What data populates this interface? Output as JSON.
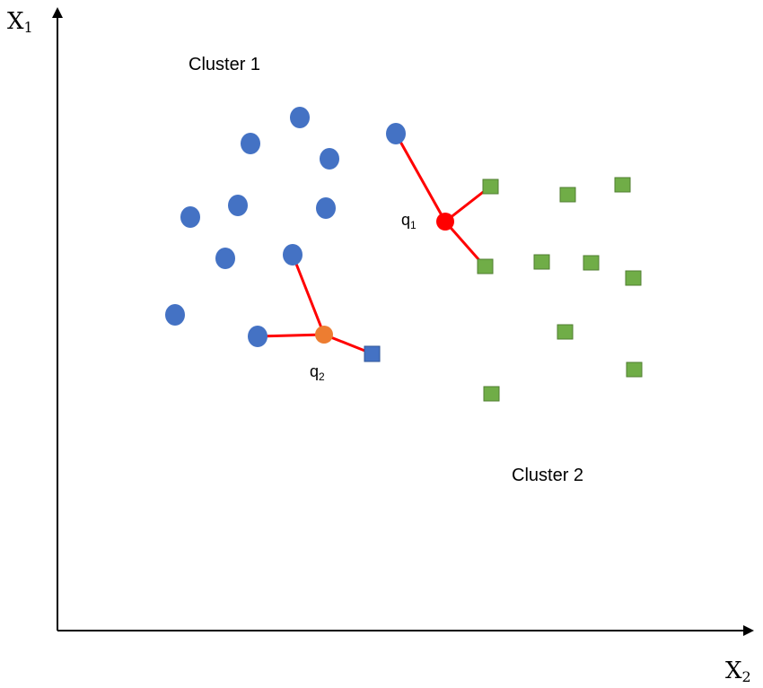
{
  "axes": {
    "y_label": "X",
    "y_label_sub": "1",
    "x_label": "X",
    "x_label_sub": "2"
  },
  "labels": {
    "cluster1": "Cluster 1",
    "cluster2": "Cluster 2",
    "q1": "q",
    "q1_sub": "1",
    "q2": "q",
    "q2_sub": "2"
  },
  "colors": {
    "cluster1_point": "#4472C4",
    "cluster2_point": "#70AD47",
    "q1_point": "#FF0000",
    "q2_point": "#ED7D31",
    "neighbor_line": "#FF0000",
    "axis": "#000000"
  },
  "legend": {
    "q1_neighbors": "3 nearest neighbors of q1: 1 cluster-1 circle, 2 cluster-2 squares",
    "q2_neighbors": "3 nearest neighbors of q2: 2 cluster-1 circles, 1 blue square"
  }
}
